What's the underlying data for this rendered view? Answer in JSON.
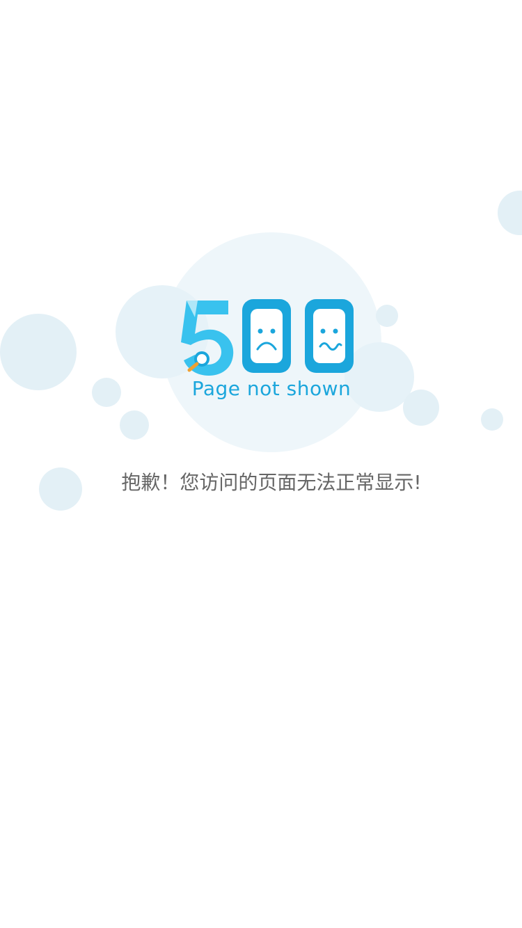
{
  "error": {
    "code": "500",
    "subtitle": "Page not shown",
    "message": "抱歉！您访问的页面无法正常显示!"
  },
  "colors": {
    "accent": "#1ba6dc",
    "accent_light": "#39c2ee",
    "bubble": "#e3f0f6",
    "text": "#666666"
  }
}
